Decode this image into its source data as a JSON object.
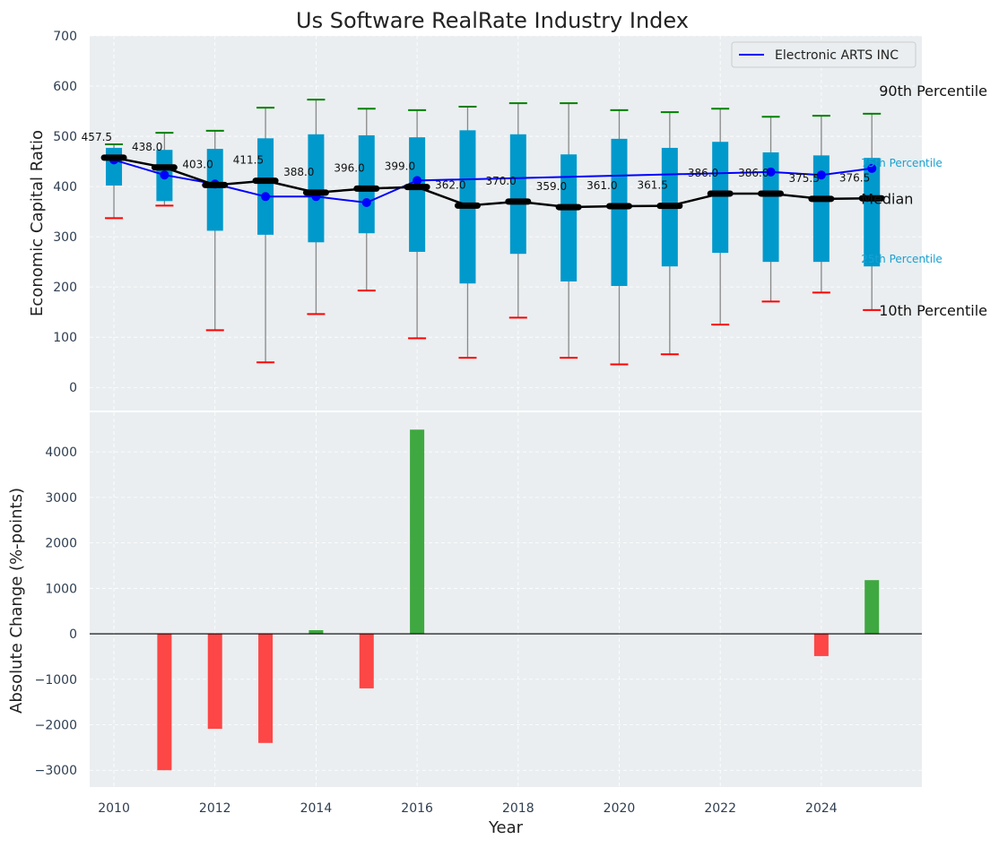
{
  "chart_data": [
    {
      "type": "box",
      "title": "Us Software RealRate Industry Index",
      "xlabel": "",
      "ylabel": "Economic Capital Ratio",
      "ylim": [
        -46,
        700
      ],
      "yticks": [
        0,
        100,
        200,
        300,
        400,
        500,
        600,
        700
      ],
      "years": [
        2010,
        2011,
        2012,
        2013,
        2014,
        2015,
        2016,
        2017,
        2018,
        2019,
        2020,
        2021,
        2022,
        2023,
        2024,
        2025
      ],
      "p90": [
        484,
        507,
        511,
        557,
        573,
        555,
        552,
        559,
        566,
        566,
        552,
        548,
        555,
        539,
        541,
        545
      ],
      "p75": [
        477,
        473,
        475,
        496,
        504,
        502,
        498,
        512,
        504,
        464,
        495,
        477,
        489,
        468,
        462,
        457
      ],
      "median": [
        457.5,
        438.0,
        403.0,
        411.5,
        388.0,
        396.0,
        399.0,
        362.0,
        370.0,
        359.0,
        361.0,
        361.5,
        386.0,
        386.0,
        375.5,
        376.5
      ],
      "median_labels": [
        "457.5",
        "438.0",
        "403.0",
        "411.5",
        "388.0",
        "396.0",
        "399.0",
        "362.0",
        "370.0",
        "359.0",
        "361.0",
        "361.5",
        "386.0",
        "386.0",
        "375.5",
        "376.5"
      ],
      "p25": [
        402,
        371,
        312,
        304,
        289,
        307,
        270,
        207,
        266,
        211,
        202,
        241,
        268,
        250,
        250,
        241
      ],
      "p10": [
        337,
        362,
        114,
        50,
        146,
        193,
        98,
        59,
        139,
        59,
        46,
        66,
        125,
        171,
        189,
        154
      ],
      "series": [
        {
          "name": "Electronic ARTS INC",
          "color": "#0000ff",
          "values": [
            453,
            423,
            405,
            380,
            380,
            368,
            412,
            null,
            null,
            null,
            null,
            null,
            null,
            429,
            423,
            436
          ]
        }
      ],
      "legend": {
        "label": "Electronic ARTS INC",
        "position": "top-right"
      },
      "annotations": {
        "p90": "90th Percentile",
        "p75": "75th Percentile",
        "median": "Median",
        "p25": "25th Percentile",
        "p10": "10th Percentile"
      },
      "colors": {
        "box": "#0099cc",
        "p90": "#008000",
        "p10": "#ff0000",
        "median": "#000000",
        "background": "#eaeef0"
      }
    },
    {
      "type": "bar",
      "xlabel": "Year",
      "ylabel": "Absolute Change (%-points)",
      "ylim": [
        -3370,
        4870
      ],
      "yticks": [
        -3000,
        -2000,
        -1000,
        0,
        1000,
        2000,
        3000,
        4000
      ],
      "ytick_labels": [
        "−3000",
        "−2000",
        "−1000",
        "0",
        "1000",
        "2000",
        "3000",
        "4000"
      ],
      "xlim": [
        2009.52,
        2025.99
      ],
      "xticks": [
        2010,
        2012,
        2014,
        2016,
        2018,
        2020,
        2022,
        2024
      ],
      "years": [
        2010,
        2011,
        2012,
        2013,
        2014,
        2015,
        2016,
        2017,
        2018,
        2019,
        2020,
        2021,
        2022,
        2023,
        2024,
        2025
      ],
      "values": [
        0,
        -3000,
        -2090,
        -2400,
        80,
        -1200,
        4490,
        0,
        0,
        0,
        0,
        0,
        0,
        0,
        -490,
        1180
      ],
      "colors": {
        "positive": "#2ca02c",
        "negative": "#ff3333"
      }
    }
  ]
}
